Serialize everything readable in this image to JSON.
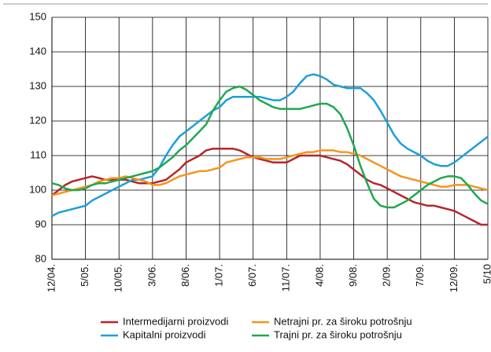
{
  "chart_data": {
    "type": "line",
    "categories": [
      "12/04.",
      null,
      null,
      null,
      null,
      "5/05.",
      null,
      null,
      null,
      null,
      "10/05.",
      null,
      null,
      null,
      null,
      "3/06.",
      null,
      null,
      null,
      null,
      "8/06.",
      null,
      null,
      null,
      null,
      "1/07.",
      null,
      null,
      null,
      null,
      "6/07.",
      null,
      null,
      null,
      null,
      "11/07.",
      null,
      null,
      null,
      null,
      "4/08.",
      null,
      null,
      null,
      null,
      "9/08.",
      null,
      null,
      null,
      null,
      "2/09.",
      null,
      null,
      null,
      null,
      "7/09.",
      null,
      null,
      null,
      null,
      "12/09.",
      null,
      null,
      null,
      null,
      "5/10"
    ],
    "series": [
      {
        "name": "Intermedijarni proizvodi",
        "color": "#b5262b",
        "values": [
          98.5,
          100,
          101.5,
          102.5,
          103,
          103.5,
          104,
          103.5,
          103,
          103,
          103,
          103,
          102.5,
          102,
          102,
          102,
          102.5,
          103,
          104.5,
          106,
          108,
          109,
          110,
          111.5,
          112,
          112,
          112,
          112,
          111.5,
          110.5,
          109.5,
          109,
          108.5,
          108,
          108,
          108,
          109,
          110,
          110,
          110,
          110,
          109.5,
          109,
          108.5,
          107.5,
          106,
          104.5,
          103,
          102,
          101.5,
          100.5,
          99.5,
          98.5,
          97.5,
          96.5,
          96,
          95.5,
          95.5,
          95,
          94.5,
          94,
          93,
          92,
          91,
          90,
          90
        ]
      },
      {
        "name": "Kapitalni proizvodi",
        "color": "#1e9fd8",
        "values": [
          92.5,
          93.5,
          94,
          94.5,
          95,
          95.5,
          97,
          98,
          99,
          100,
          101,
          102,
          103,
          103,
          103.5,
          104,
          106.5,
          110,
          113,
          115.5,
          117,
          118.5,
          120,
          121.5,
          123,
          124,
          126,
          127,
          127,
          127,
          127,
          127,
          126.5,
          126,
          126,
          127,
          128.5,
          131,
          133,
          133.5,
          133,
          132,
          130.5,
          130,
          129.5,
          129.5,
          129.5,
          128,
          126,
          123,
          119.5,
          116,
          113.5,
          112,
          111,
          110,
          108.5,
          107.5,
          107,
          107,
          108,
          109.5,
          111,
          112.5,
          114,
          115.5
        ]
      },
      {
        "name": "Netrajni pr. za široku potrošnju",
        "color": "#f7941d",
        "values": [
          98.5,
          99,
          99.5,
          100,
          100.5,
          101,
          101.5,
          102.5,
          103,
          103.5,
          103.5,
          104,
          103.5,
          103,
          102.5,
          101.5,
          101.5,
          102,
          103,
          104,
          104.5,
          105,
          105.5,
          105.5,
          106,
          106.5,
          108,
          108.5,
          109,
          109.5,
          109.5,
          109.5,
          109,
          109,
          109,
          109.5,
          110,
          110.5,
          111,
          111,
          111.5,
          111.5,
          111.5,
          111,
          111,
          110.5,
          110,
          109,
          108,
          107,
          106,
          105,
          104,
          103.5,
          103,
          102.5,
          102,
          101.5,
          101,
          101,
          101.5,
          101.5,
          101.5,
          101,
          100.5,
          100
        ]
      },
      {
        "name": "Trajni pr. za široku potrošnju",
        "color": "#1fa84f",
        "values": [
          102,
          101.5,
          100.5,
          100,
          100,
          100.5,
          101.5,
          102,
          102,
          102.5,
          103,
          103.5,
          104,
          104.5,
          105,
          105.5,
          106.5,
          108,
          109.5,
          111.5,
          113,
          115,
          117,
          119,
          123,
          126,
          128.5,
          129.5,
          130,
          129,
          127.5,
          126,
          125,
          124,
          123.5,
          123.5,
          123.5,
          123.5,
          124,
          124.5,
          125,
          125,
          124,
          122,
          118,
          113,
          107,
          102,
          97.5,
          95.5,
          95,
          95,
          96,
          97,
          98.5,
          100,
          101.5,
          102.5,
          103.5,
          104,
          104,
          103.5,
          101.5,
          99,
          97,
          96
        ]
      }
    ],
    "ylim": [
      80,
      150
    ],
    "yticks": [
      80,
      90,
      100,
      110,
      120,
      130,
      140,
      150
    ],
    "grid": true
  }
}
